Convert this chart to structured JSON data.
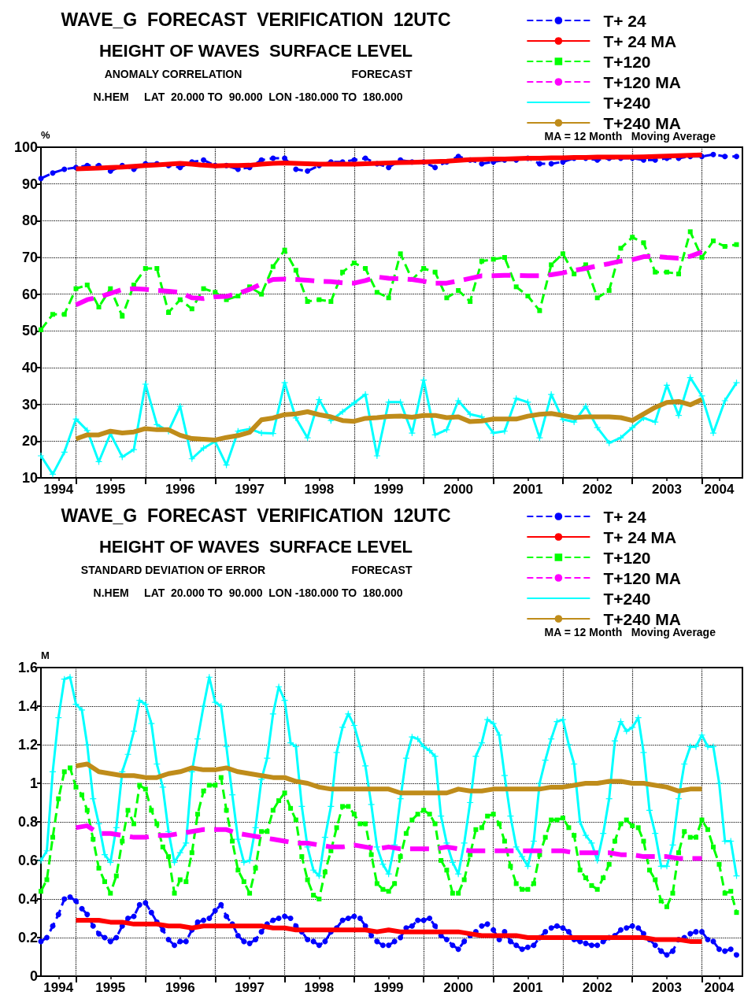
{
  "chart_data": [
    {
      "type": "line",
      "title": "WAVE_G  FORECAST  VERIFICATION  12UTC",
      "subtitle": "HEIGHT OF WAVES  SURFACE LEVEL",
      "annotations": [
        "ANOMALY CORRELATION",
        "FORECAST",
        "N.HEM     LAT  20.000 TO  90.000  LON -180.000 TO  180.000",
        "MA = 12 Month   Moving Average"
      ],
      "ylabel": "%",
      "grid": true,
      "legend": "top right",
      "xlim": [
        "1994-07",
        "2004-08"
      ],
      "xticks": [
        {
          "value": "1995-01",
          "label": null
        },
        {
          "value": "1996-01",
          "label": null
        },
        {
          "value": "1997-01",
          "label": null
        },
        {
          "value": "1998-01",
          "label": null
        },
        {
          "value": "1999-01",
          "label": null
        },
        {
          "value": "2000-01",
          "label": null
        },
        {
          "value": "2001-01",
          "label": null
        },
        {
          "value": "2002-01",
          "label": null
        },
        {
          "value": "2003-01",
          "label": null
        },
        {
          "value": "2004-01",
          "label": null
        },
        {
          "value": "1994-10",
          "label": "1994"
        },
        {
          "value": "1995-07",
          "label": "1995"
        },
        {
          "value": "1996-07",
          "label": "1996"
        },
        {
          "value": "1997-07",
          "label": "1997"
        },
        {
          "value": "1998-07",
          "label": "1998"
        },
        {
          "value": "1999-07",
          "label": "1999"
        },
        {
          "value": "2000-07",
          "label": "2000"
        },
        {
          "value": "2001-07",
          "label": "2001"
        },
        {
          "value": "2002-07",
          "label": "2002"
        },
        {
          "value": "2003-07",
          "label": "2003"
        },
        {
          "value": "2004-04",
          "label": "2004"
        }
      ],
      "ylim": [
        10,
        100
      ],
      "yticks": [
        10,
        20,
        30,
        40,
        50,
        60,
        70,
        80,
        90,
        100
      ],
      "x": [
        "1994-07",
        "1994-09",
        "1994-11",
        "1995-01",
        "1995-03",
        "1995-05",
        "1995-07",
        "1995-09",
        "1995-11",
        "1996-01",
        "1996-03",
        "1996-05",
        "1996-07",
        "1996-09",
        "1996-11",
        "1997-01",
        "1997-03",
        "1997-05",
        "1997-07",
        "1997-09",
        "1997-11",
        "1998-01",
        "1998-03",
        "1998-05",
        "1998-07",
        "1998-09",
        "1998-11",
        "1999-01",
        "1999-03",
        "1999-05",
        "1999-07",
        "1999-09",
        "1999-11",
        "2000-01",
        "2000-03",
        "2000-05",
        "2000-07",
        "2000-09",
        "2000-11",
        "2001-01",
        "2001-03",
        "2001-05",
        "2001-07",
        "2001-09",
        "2001-11",
        "2002-01",
        "2002-03",
        "2002-05",
        "2002-07",
        "2002-09",
        "2002-11",
        "2003-01",
        "2003-03",
        "2003-05",
        "2003-07",
        "2003-09",
        "2003-11",
        "2004-01",
        "2004-03",
        "2004-05",
        "2004-07"
      ],
      "series": [
        {
          "name": "T+ 24",
          "color": "#0000ff",
          "marker": "circle",
          "line_style": "dashed",
          "values": [
            91.5,
            93,
            94,
            94.5,
            95,
            95,
            93.5,
            95,
            94,
            95.5,
            95.5,
            95,
            94.5,
            96,
            96.5,
            95,
            95,
            94,
            94.5,
            96.5,
            97,
            97,
            94,
            93.5,
            95,
            96,
            96,
            96.5,
            97,
            95.5,
            94.5,
            96.5,
            96,
            96,
            94.5,
            96,
            97.5,
            96.5,
            95.5,
            96,
            96.5,
            96.5,
            97,
            95.5,
            95.5,
            96,
            97,
            97,
            96.5,
            97,
            97,
            97,
            96.5,
            96.5,
            97,
            97,
            97.5,
            97.5,
            98,
            97.5,
            97.5
          ]
        },
        {
          "name": "T+ 24 MA",
          "color": "#ff0000",
          "marker": "none",
          "line_style": "solid",
          "x": [
            "1995-01",
            "1995-03",
            "1995-05",
            "1995-07",
            "1995-09",
            "1995-11",
            "1996-01",
            "1996-03",
            "1996-05",
            "1996-07",
            "1996-09",
            "1996-11",
            "1997-01",
            "1997-03",
            "1997-05",
            "1997-07",
            "1997-09",
            "1997-11",
            "1998-01",
            "1998-03",
            "1998-05",
            "1998-07",
            "1998-09",
            "1998-11",
            "1999-01",
            "1999-03",
            "1999-05",
            "1999-07",
            "1999-09",
            "1999-11",
            "2000-01",
            "2000-03",
            "2000-05",
            "2000-07",
            "2000-09",
            "2000-11",
            "2001-01",
            "2001-03",
            "2001-05",
            "2001-07",
            "2001-09",
            "2001-11",
            "2002-01",
            "2002-03",
            "2002-05",
            "2002-07",
            "2002-09",
            "2002-11",
            "2003-01",
            "2003-03",
            "2003-05",
            "2003-07",
            "2003-09",
            "2003-11",
            "2004-01"
          ],
          "values": [
            94.1,
            94.2,
            94.3,
            94.5,
            94.6,
            94.8,
            95.0,
            95.2,
            95.4,
            95.6,
            95.4,
            95.1,
            94.9,
            95.0,
            95.0,
            95.1,
            95.4,
            95.6,
            95.7,
            95.6,
            95.5,
            95.4,
            95.4,
            95.4,
            95.4,
            95.5,
            95.6,
            95.7,
            95.8,
            95.9,
            96.0,
            96.1,
            96.2,
            96.4,
            96.6,
            96.7,
            96.8,
            96.8,
            96.9,
            97.0,
            97.0,
            97.1,
            97.1,
            97.2,
            97.2,
            97.3,
            97.3,
            97.3,
            97.3,
            97.4,
            97.5,
            97.6,
            97.7,
            97.8,
            97.9
          ]
        },
        {
          "name": "T+120",
          "color": "#00ff00",
          "marker": "square",
          "line_style": "dashed",
          "values": [
            50.3,
            54.5,
            54.5,
            61.5,
            62.5,
            56.5,
            61.5,
            54,
            62.5,
            67,
            67,
            55,
            58.5,
            56,
            61.5,
            60.5,
            58.5,
            59.5,
            62,
            60,
            67.5,
            72,
            66.5,
            58,
            58.5,
            58,
            66,
            68.5,
            67,
            60.5,
            59,
            71,
            64,
            67,
            66,
            59,
            61,
            58,
            69,
            69.5,
            70,
            62,
            59.5,
            55.5,
            68,
            71,
            65.5,
            68,
            59,
            61,
            72.5,
            75.5,
            74,
            66,
            66,
            65.5,
            77,
            70,
            74.5,
            73,
            73.5
          ]
        },
        {
          "name": "T+120 MA",
          "color": "#ff00ff",
          "marker": "none",
          "line_style": "dashed",
          "x": [
            "1995-01",
            "1995-03",
            "1995-05",
            "1995-07",
            "1995-09",
            "1995-11",
            "1996-01",
            "1996-03",
            "1996-05",
            "1996-07",
            "1996-09",
            "1996-11",
            "1997-01",
            "1997-03",
            "1997-05",
            "1997-07",
            "1997-09",
            "1997-11",
            "1998-01",
            "1998-03",
            "1998-05",
            "1998-07",
            "1998-09",
            "1998-11",
            "1999-01",
            "1999-03",
            "1999-05",
            "1999-07",
            "1999-09",
            "1999-11",
            "2000-01",
            "2000-03",
            "2000-05",
            "2000-07",
            "2000-09",
            "2000-11",
            "2001-01",
            "2001-03",
            "2001-05",
            "2001-07",
            "2001-09",
            "2001-11",
            "2002-01",
            "2002-03",
            "2002-05",
            "2002-07",
            "2002-09",
            "2002-11",
            "2003-01",
            "2003-03",
            "2003-05",
            "2003-07",
            "2003-09",
            "2003-11",
            "2004-01"
          ],
          "values": [
            57.1,
            58.5,
            59.2,
            60.2,
            61.3,
            61.5,
            61.3,
            61.0,
            60.8,
            60.5,
            59.0,
            58.8,
            59.3,
            59.4,
            60.2,
            61.3,
            62.8,
            64.0,
            64.1,
            64.0,
            63.8,
            63.5,
            63.4,
            63.1,
            63.0,
            63.7,
            64.7,
            64.3,
            64.2,
            64.0,
            63.5,
            63.0,
            63.0,
            63.6,
            64.3,
            65.0,
            65.0,
            65.1,
            65.1,
            65.0,
            65.0,
            65.3,
            65.8,
            66.5,
            67.0,
            67.7,
            68.3,
            69.0,
            69.4,
            70.2,
            70.3,
            70.0,
            69.8,
            70.3,
            71.5
          ]
        },
        {
          "name": "T+240",
          "color": "#00ffff",
          "marker": "cross",
          "line_style": "solid",
          "values": [
            16,
            11,
            17,
            26,
            22.9,
            14.4,
            22,
            15.7,
            17.7,
            35.5,
            24.5,
            22.7,
            29.5,
            15.2,
            18.1,
            19.9,
            13.5,
            22.7,
            23.3,
            22.2,
            22.1,
            35.9,
            26.3,
            20.9,
            31.3,
            25.6,
            28,
            30.4,
            32.7,
            16,
            30.6,
            30.6,
            22.2,
            36.6,
            21.7,
            23.1,
            31,
            27.3,
            26.6,
            22.2,
            22.7,
            31.6,
            30.6,
            20.9,
            32.7,
            25.9,
            25.2,
            29.5,
            23.7,
            19.5,
            20.9,
            23.7,
            26.3,
            25.2,
            35.2,
            27,
            37.3,
            32.3,
            22.2,
            31,
            35.9
          ]
        },
        {
          "name": "T+240 MA",
          "color": "#bf8c1a",
          "marker": "none",
          "line_style": "solid",
          "x": [
            "1995-01",
            "1995-03",
            "1995-05",
            "1995-07",
            "1995-09",
            "1995-11",
            "1996-01",
            "1996-03",
            "1996-05",
            "1996-07",
            "1996-09",
            "1996-11",
            "1997-01",
            "1997-03",
            "1997-05",
            "1997-07",
            "1997-09",
            "1997-11",
            "1998-01",
            "1998-03",
            "1998-05",
            "1998-07",
            "1998-09",
            "1998-11",
            "1999-01",
            "1999-03",
            "1999-05",
            "1999-07",
            "1999-09",
            "1999-11",
            "2000-01",
            "2000-03",
            "2000-05",
            "2000-07",
            "2000-09",
            "2000-11",
            "2001-01",
            "2001-03",
            "2001-05",
            "2001-07",
            "2001-09",
            "2001-11",
            "2002-01",
            "2002-03",
            "2002-05",
            "2002-07",
            "2002-09",
            "2002-11",
            "2003-01",
            "2003-03",
            "2003-05",
            "2003-07",
            "2003-09",
            "2003-11",
            "2004-01"
          ],
          "values": [
            20.6,
            21.7,
            21.7,
            22.7,
            22.2,
            22.5,
            23.4,
            23.1,
            23.1,
            21.6,
            20.7,
            20.5,
            20.3,
            21,
            21.5,
            22.4,
            25.8,
            26.3,
            27.2,
            27.4,
            28,
            27.2,
            26.6,
            25.6,
            25.4,
            26.2,
            26.4,
            26.7,
            26.8,
            26.5,
            27,
            27,
            26.4,
            26.6,
            25.3,
            25.5,
            26,
            26,
            26,
            26.8,
            27.3,
            27.5,
            27,
            26.4,
            26.6,
            26.6,
            26.6,
            26.4,
            25.6,
            27.4,
            29.2,
            30.5,
            30.8,
            29.9,
            31.3
          ]
        }
      ]
    },
    {
      "type": "line",
      "title": "WAVE_G  FORECAST  VERIFICATION  12UTC",
      "subtitle": "HEIGHT OF WAVES  SURFACE LEVEL",
      "annotations": [
        "STANDARD DEVIATION OF ERROR",
        "FORECAST",
        "N.HEM     LAT  20.000 TO  90.000  LON -180.000 TO  180.000",
        "MA = 12 Month   Moving Average"
      ],
      "ylabel": "M",
      "grid": true,
      "legend": "top right",
      "xlim": [
        "1994-07",
        "2004-08"
      ],
      "xticks": [
        {
          "value": "1995-01",
          "label": null
        },
        {
          "value": "1996-01",
          "label": null
        },
        {
          "value": "1997-01",
          "label": null
        },
        {
          "value": "1998-01",
          "label": null
        },
        {
          "value": "1999-01",
          "label": null
        },
        {
          "value": "2000-01",
          "label": null
        },
        {
          "value": "2001-01",
          "label": null
        },
        {
          "value": "2002-01",
          "label": null
        },
        {
          "value": "2003-01",
          "label": null
        },
        {
          "value": "2004-01",
          "label": null
        },
        {
          "value": "1994-10",
          "label": "1994"
        },
        {
          "value": "1995-07",
          "label": "1995"
        },
        {
          "value": "1996-07",
          "label": "1996"
        },
        {
          "value": "1997-07",
          "label": "1997"
        },
        {
          "value": "1998-07",
          "label": "1998"
        },
        {
          "value": "1999-07",
          "label": "1999"
        },
        {
          "value": "2000-07",
          "label": "2000"
        },
        {
          "value": "2001-07",
          "label": "2001"
        },
        {
          "value": "2002-07",
          "label": "2002"
        },
        {
          "value": "2003-07",
          "label": "2003"
        },
        {
          "value": "2004-04",
          "label": "2004"
        }
      ],
      "ylim": [
        0,
        1.6
      ],
      "yticks": [
        0,
        0.2,
        0.4,
        0.6,
        0.8,
        1,
        1.2,
        1.4,
        1.6
      ],
      "x": [
        "1994-07",
        "1994-08",
        "1994-09",
        "1994-10",
        "1994-11",
        "1994-12",
        "1995-01",
        "1995-02",
        "1995-03",
        "1995-04",
        "1995-05",
        "1995-06",
        "1995-07",
        "1995-08",
        "1995-09",
        "1995-10",
        "1995-11",
        "1995-12",
        "1996-01",
        "1996-02",
        "1996-03",
        "1996-04",
        "1996-05",
        "1996-06",
        "1996-07",
        "1996-08",
        "1996-09",
        "1996-10",
        "1996-11",
        "1996-12",
        "1997-01",
        "1997-02",
        "1997-03",
        "1997-04",
        "1997-05",
        "1997-06",
        "1997-07",
        "1997-08",
        "1997-09",
        "1997-10",
        "1997-11",
        "1997-12",
        "1998-01",
        "1998-02",
        "1998-03",
        "1998-04",
        "1998-05",
        "1998-06",
        "1998-07",
        "1998-08",
        "1998-09",
        "1998-10",
        "1998-11",
        "1998-12",
        "1999-01",
        "1999-02",
        "1999-03",
        "1999-04",
        "1999-05",
        "1999-06",
        "1999-07",
        "1999-08",
        "1999-09",
        "1999-10",
        "1999-11",
        "1999-12",
        "2000-01",
        "2000-02",
        "2000-03",
        "2000-04",
        "2000-05",
        "2000-06",
        "2000-07",
        "2000-08",
        "2000-09",
        "2000-10",
        "2000-11",
        "2000-12",
        "2001-01",
        "2001-02",
        "2001-03",
        "2001-04",
        "2001-05",
        "2001-06",
        "2001-07",
        "2001-08",
        "2001-09",
        "2001-10",
        "2001-11",
        "2001-12",
        "2002-01",
        "2002-02",
        "2002-03",
        "2002-04",
        "2002-05",
        "2002-06",
        "2002-07",
        "2002-08",
        "2002-09",
        "2002-10",
        "2002-11",
        "2002-12",
        "2003-01",
        "2003-02",
        "2003-03",
        "2003-04",
        "2003-05",
        "2003-06",
        "2003-07",
        "2003-08",
        "2003-09",
        "2003-10",
        "2003-11",
        "2003-12",
        "2004-01",
        "2004-02",
        "2004-03",
        "2004-04",
        "2004-05",
        "2004-06",
        "2004-07"
      ],
      "series": [
        {
          "name": "T+ 24",
          "color": "#0000ff",
          "marker": "circle",
          "line_style": "dashed",
          "values": [
            0.18,
            0.2,
            0.26,
            0.32,
            0.4,
            0.41,
            0.39,
            0.35,
            0.32,
            0.26,
            0.22,
            0.2,
            0.18,
            0.2,
            0.26,
            0.3,
            0.31,
            0.37,
            0.38,
            0.33,
            0.28,
            0.24,
            0.19,
            0.16,
            0.18,
            0.18,
            0.24,
            0.28,
            0.29,
            0.3,
            0.34,
            0.37,
            0.31,
            0.27,
            0.21,
            0.18,
            0.17,
            0.19,
            0.23,
            0.27,
            0.29,
            0.3,
            0.31,
            0.3,
            0.26,
            0.23,
            0.19,
            0.18,
            0.16,
            0.18,
            0.23,
            0.25,
            0.29,
            0.3,
            0.31,
            0.3,
            0.26,
            0.21,
            0.18,
            0.16,
            0.16,
            0.18,
            0.2,
            0.25,
            0.26,
            0.29,
            0.29,
            0.3,
            0.26,
            0.21,
            0.19,
            0.16,
            0.14,
            0.18,
            0.21,
            0.23,
            0.26,
            0.27,
            0.24,
            0.19,
            0.23,
            0.18,
            0.16,
            0.14,
            0.15,
            0.16,
            0.2,
            0.23,
            0.25,
            0.26,
            0.25,
            0.23,
            0.19,
            0.18,
            0.17,
            0.16,
            0.16,
            0.18,
            0.2,
            0.21,
            0.24,
            0.25,
            0.26,
            0.25,
            0.22,
            0.19,
            0.16,
            0.13,
            0.11,
            0.13,
            0.19,
            0.2,
            0.22,
            0.23,
            0.23,
            0.19,
            0.18,
            0.14,
            0.13,
            0.14,
            0.11
          ]
        },
        {
          "name": "T+ 24 MA",
          "color": "#ff0000",
          "marker": "none",
          "line_style": "solid",
          "x": [
            "1995-01",
            "1995-03",
            "1995-05",
            "1995-07",
            "1995-09",
            "1995-11",
            "1996-01",
            "1996-03",
            "1996-05",
            "1996-07",
            "1996-09",
            "1996-11",
            "1997-01",
            "1997-03",
            "1997-05",
            "1997-07",
            "1997-09",
            "1997-11",
            "1998-01",
            "1998-03",
            "1998-05",
            "1998-07",
            "1998-09",
            "1998-11",
            "1999-01",
            "1999-03",
            "1999-05",
            "1999-07",
            "1999-09",
            "1999-11",
            "2000-01",
            "2000-03",
            "2000-05",
            "2000-07",
            "2000-09",
            "2000-11",
            "2001-01",
            "2001-03",
            "2001-05",
            "2001-07",
            "2001-09",
            "2001-11",
            "2002-01",
            "2002-03",
            "2002-05",
            "2002-07",
            "2002-09",
            "2002-11",
            "2003-01",
            "2003-03",
            "2003-05",
            "2003-07",
            "2003-09",
            "2003-11",
            "2004-01"
          ],
          "values": [
            0.29,
            0.29,
            0.29,
            0.28,
            0.28,
            0.27,
            0.27,
            0.27,
            0.26,
            0.26,
            0.25,
            0.26,
            0.26,
            0.26,
            0.26,
            0.26,
            0.26,
            0.25,
            0.25,
            0.24,
            0.24,
            0.24,
            0.24,
            0.24,
            0.24,
            0.24,
            0.23,
            0.24,
            0.23,
            0.23,
            0.23,
            0.23,
            0.23,
            0.23,
            0.22,
            0.21,
            0.21,
            0.21,
            0.21,
            0.2,
            0.2,
            0.2,
            0.2,
            0.2,
            0.2,
            0.2,
            0.2,
            0.2,
            0.2,
            0.2,
            0.19,
            0.19,
            0.19,
            0.18,
            0.18
          ]
        },
        {
          "name": "T+120",
          "color": "#00ff00",
          "marker": "square",
          "line_style": "dashed",
          "values": [
            0.44,
            0.5,
            0.72,
            0.92,
            1.06,
            1.08,
            0.98,
            0.94,
            0.86,
            0.71,
            0.56,
            0.49,
            0.43,
            0.52,
            0.7,
            0.86,
            0.79,
            0.99,
            0.97,
            0.86,
            0.79,
            0.67,
            0.62,
            0.43,
            0.5,
            0.49,
            0.64,
            0.84,
            0.96,
            0.99,
            0.99,
            1.03,
            0.86,
            0.7,
            0.55,
            0.49,
            0.43,
            0.56,
            0.75,
            0.75,
            0.86,
            0.91,
            0.95,
            0.87,
            0.81,
            0.62,
            0.5,
            0.42,
            0.4,
            0.54,
            0.65,
            0.77,
            0.88,
            0.88,
            0.84,
            0.79,
            0.79,
            0.63,
            0.48,
            0.45,
            0.44,
            0.48,
            0.62,
            0.74,
            0.81,
            0.84,
            0.86,
            0.84,
            0.79,
            0.6,
            0.55,
            0.43,
            0.43,
            0.5,
            0.63,
            0.76,
            0.77,
            0.83,
            0.84,
            0.79,
            0.7,
            0.57,
            0.48,
            0.45,
            0.45,
            0.48,
            0.63,
            0.72,
            0.81,
            0.81,
            0.82,
            0.77,
            0.73,
            0.55,
            0.51,
            0.47,
            0.45,
            0.51,
            0.58,
            0.7,
            0.79,
            0.81,
            0.78,
            0.77,
            0.7,
            0.55,
            0.5,
            0.39,
            0.36,
            0.43,
            0.64,
            0.75,
            0.72,
            0.72,
            0.81,
            0.76,
            0.67,
            0.58,
            0.43,
            0.44,
            0.33
          ]
        },
        {
          "name": "T+120 MA",
          "color": "#ff00ff",
          "marker": "none",
          "line_style": "dashed",
          "x": [
            "1995-01",
            "1995-03",
            "1995-05",
            "1995-07",
            "1995-09",
            "1995-11",
            "1996-01",
            "1996-03",
            "1996-05",
            "1996-07",
            "1996-09",
            "1996-11",
            "1997-01",
            "1997-03",
            "1997-05",
            "1997-07",
            "1997-09",
            "1997-11",
            "1998-01",
            "1998-03",
            "1998-05",
            "1998-07",
            "1998-09",
            "1998-11",
            "1999-01",
            "1999-03",
            "1999-05",
            "1999-07",
            "1999-09",
            "1999-11",
            "2000-01",
            "2000-03",
            "2000-05",
            "2000-07",
            "2000-09",
            "2000-11",
            "2001-01",
            "2001-03",
            "2001-05",
            "2001-07",
            "2001-09",
            "2001-11",
            "2002-01",
            "2002-03",
            "2002-05",
            "2002-07",
            "2002-09",
            "2002-11",
            "2003-01",
            "2003-03",
            "2003-05",
            "2003-07",
            "2003-09",
            "2003-11",
            "2004-01"
          ],
          "values": [
            0.77,
            0.78,
            0.74,
            0.74,
            0.73,
            0.72,
            0.72,
            0.73,
            0.73,
            0.74,
            0.75,
            0.76,
            0.76,
            0.76,
            0.74,
            0.73,
            0.72,
            0.71,
            0.7,
            0.69,
            0.69,
            0.68,
            0.67,
            0.67,
            0.68,
            0.67,
            0.66,
            0.67,
            0.66,
            0.66,
            0.66,
            0.66,
            0.67,
            0.66,
            0.65,
            0.65,
            0.65,
            0.65,
            0.65,
            0.65,
            0.65,
            0.65,
            0.65,
            0.64,
            0.64,
            0.64,
            0.64,
            0.63,
            0.63,
            0.62,
            0.62,
            0.62,
            0.61,
            0.61,
            0.61
          ]
        },
        {
          "name": "T+240",
          "color": "#00ffff",
          "marker": "cross",
          "line_style": "solid",
          "values": [
            0.6,
            0.65,
            1.06,
            1.34,
            1.54,
            1.55,
            1.41,
            1.38,
            1.2,
            0.92,
            0.79,
            0.63,
            0.59,
            0.77,
            1.06,
            1.15,
            1.27,
            1.43,
            1.41,
            1.31,
            1.1,
            0.98,
            0.75,
            0.59,
            0.64,
            0.69,
            1.06,
            1.23,
            1.4,
            1.55,
            1.42,
            1.4,
            1.19,
            0.94,
            0.71,
            0.59,
            0.6,
            0.77,
            1.02,
            1.13,
            1.36,
            1.5,
            1.43,
            1.21,
            1.19,
            0.88,
            0.67,
            0.55,
            0.52,
            0.72,
            0.88,
            1.16,
            1.29,
            1.36,
            1.3,
            1.19,
            1.09,
            0.89,
            0.67,
            0.58,
            0.53,
            0.68,
            0.92,
            1.13,
            1.24,
            1.23,
            1.19,
            1.17,
            1.14,
            0.83,
            0.69,
            0.59,
            0.53,
            0.69,
            0.9,
            1.14,
            1.21,
            1.33,
            1.31,
            1.25,
            1.04,
            0.83,
            0.67,
            0.62,
            0.57,
            0.7,
            1.0,
            1.12,
            1.23,
            1.32,
            1.33,
            1.2,
            1.1,
            0.8,
            0.73,
            0.69,
            0.6,
            0.74,
            0.92,
            1.22,
            1.32,
            1.27,
            1.29,
            1.34,
            1.16,
            0.86,
            0.74,
            0.57,
            0.57,
            0.68,
            0.92,
            1.1,
            1.19,
            1.19,
            1.25,
            1.19,
            1.19,
            1.0,
            0.7,
            0.7,
            0.52
          ]
        },
        {
          "name": "T+240 MA",
          "color": "#bf8c1a",
          "marker": "none",
          "line_style": "solid",
          "x": [
            "1995-01",
            "1995-03",
            "1995-05",
            "1995-07",
            "1995-09",
            "1995-11",
            "1996-01",
            "1996-03",
            "1996-05",
            "1996-07",
            "1996-09",
            "1996-11",
            "1997-01",
            "1997-03",
            "1997-05",
            "1997-07",
            "1997-09",
            "1997-11",
            "1998-01",
            "1998-03",
            "1998-05",
            "1998-07",
            "1998-09",
            "1998-11",
            "1999-01",
            "1999-03",
            "1999-05",
            "1999-07",
            "1999-09",
            "1999-11",
            "2000-01",
            "2000-03",
            "2000-05",
            "2000-07",
            "2000-09",
            "2000-11",
            "2001-01",
            "2001-03",
            "2001-05",
            "2001-07",
            "2001-09",
            "2001-11",
            "2002-01",
            "2002-03",
            "2002-05",
            "2002-07",
            "2002-09",
            "2002-11",
            "2003-01",
            "2003-03",
            "2003-05",
            "2003-07",
            "2003-09",
            "2003-11",
            "2004-01"
          ],
          "values": [
            1.09,
            1.1,
            1.06,
            1.05,
            1.04,
            1.04,
            1.03,
            1.03,
            1.05,
            1.06,
            1.08,
            1.07,
            1.07,
            1.08,
            1.06,
            1.05,
            1.04,
            1.03,
            1.03,
            1.01,
            1.0,
            0.98,
            0.97,
            0.97,
            0.97,
            0.97,
            0.97,
            0.97,
            0.95,
            0.95,
            0.95,
            0.95,
            0.95,
            0.97,
            0.96,
            0.96,
            0.97,
            0.97,
            0.97,
            0.97,
            0.97,
            0.98,
            0.98,
            0.99,
            1.0,
            1.0,
            1.01,
            1.01,
            1.0,
            1.0,
            0.99,
            0.98,
            0.96,
            0.97,
            0.97
          ]
        }
      ]
    }
  ]
}
